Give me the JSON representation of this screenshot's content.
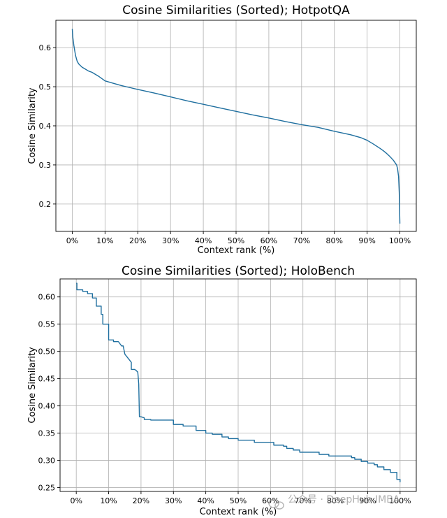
{
  "colors": {
    "series": "#1f6f9f",
    "watermark": "#9a9a9a"
  },
  "watermark": {
    "icon": "wechat-icon",
    "text": "公众号 · DeepHub IMBA"
  },
  "chart_data": [
    {
      "type": "line",
      "title": "Cosine Similarities (Sorted); HotpotQA",
      "xlabel": "Context rank (%)",
      "ylabel": "Cosine Similarity",
      "xlim": [
        -5,
        105
      ],
      "ylim": [
        0.13,
        0.67
      ],
      "grid": true,
      "xticks": [
        0,
        10,
        20,
        30,
        40,
        50,
        60,
        70,
        80,
        90,
        100
      ],
      "xtick_labels": [
        "0%",
        "10%",
        "20%",
        "30%",
        "40%",
        "50%",
        "60%",
        "70%",
        "80%",
        "90%",
        "100%"
      ],
      "yticks": [
        0.2,
        0.3,
        0.4,
        0.5,
        0.6
      ],
      "ytick_labels": [
        "0.2",
        "0.3",
        "0.4",
        "0.5",
        "0.6"
      ],
      "series": [
        {
          "x": [
            0,
            0.2,
            0.5,
            1,
            1.5,
            2,
            3,
            4,
            5,
            6,
            8,
            10,
            12,
            15,
            18,
            20,
            25,
            30,
            35,
            40,
            45,
            50,
            55,
            60,
            65,
            70,
            75,
            80,
            85,
            88,
            90,
            92,
            94,
            95,
            96,
            97,
            98,
            98.5,
            99,
            99.3,
            99.6,
            99.8,
            100
          ],
          "y": [
            0.648,
            0.625,
            0.605,
            0.58,
            0.565,
            0.558,
            0.55,
            0.545,
            0.54,
            0.537,
            0.527,
            0.515,
            0.51,
            0.503,
            0.497,
            0.493,
            0.484,
            0.474,
            0.464,
            0.455,
            0.446,
            0.437,
            0.428,
            0.42,
            0.411,
            0.403,
            0.396,
            0.386,
            0.377,
            0.37,
            0.363,
            0.353,
            0.342,
            0.336,
            0.329,
            0.321,
            0.312,
            0.306,
            0.3,
            0.29,
            0.27,
            0.23,
            0.15
          ]
        }
      ]
    },
    {
      "type": "line",
      "title": "Cosine Similarities (Sorted); HoloBench",
      "xlabel": "Context rank (%)",
      "ylabel": "Cosine Similarity",
      "xlim": [
        -5,
        105
      ],
      "ylim": [
        0.243,
        0.633
      ],
      "grid": true,
      "xticks": [
        0,
        10,
        20,
        30,
        40,
        50,
        60,
        70,
        80,
        90,
        100
      ],
      "xtick_labels": [
        "0%",
        "10%",
        "20%",
        "30%",
        "40%",
        "50%",
        "60%",
        "70%",
        "80%",
        "90%",
        "100%"
      ],
      "yticks": [
        0.25,
        0.3,
        0.35,
        0.4,
        0.45,
        0.5,
        0.55,
        0.6
      ],
      "ytick_labels": [
        "0.25",
        "0.30",
        "0.35",
        "0.40",
        "0.45",
        "0.50",
        "0.55",
        "0.60"
      ],
      "series": [
        {
          "x": [
            0,
            0.2,
            0.2,
            2,
            2,
            3.5,
            3.5,
            5,
            5,
            6.2,
            6.2,
            7.7,
            7.7,
            8.2,
            8.2,
            10,
            10,
            11.5,
            11.5,
            13,
            14,
            14.5,
            15,
            17,
            17,
            18,
            18.5,
            19,
            19.3,
            19.5,
            20,
            21,
            21,
            23,
            23,
            30,
            30,
            33,
            33,
            37,
            37,
            40,
            40,
            42,
            42,
            45,
            45,
            47,
            47,
            50,
            50,
            55,
            55,
            61,
            61,
            64,
            64,
            65,
            65,
            67,
            67,
            69,
            69,
            75,
            75,
            78,
            78,
            85,
            85,
            86,
            86,
            88,
            88,
            90,
            90,
            92,
            92,
            93,
            93,
            95,
            95,
            97,
            97,
            99,
            99,
            100,
            100
          ],
          "y": [
            0.625,
            0.625,
            0.613,
            0.613,
            0.61,
            0.61,
            0.606,
            0.606,
            0.598,
            0.598,
            0.583,
            0.583,
            0.568,
            0.568,
            0.55,
            0.55,
            0.521,
            0.521,
            0.518,
            0.518,
            0.51,
            0.51,
            0.495,
            0.48,
            0.467,
            0.467,
            0.465,
            0.462,
            0.44,
            0.38,
            0.38,
            0.378,
            0.375,
            0.375,
            0.374,
            0.374,
            0.366,
            0.366,
            0.363,
            0.363,
            0.355,
            0.355,
            0.35,
            0.35,
            0.348,
            0.348,
            0.343,
            0.343,
            0.34,
            0.34,
            0.337,
            0.337,
            0.333,
            0.333,
            0.328,
            0.328,
            0.326,
            0.326,
            0.322,
            0.322,
            0.319,
            0.319,
            0.315,
            0.315,
            0.311,
            0.311,
            0.308,
            0.308,
            0.305,
            0.305,
            0.302,
            0.302,
            0.298,
            0.298,
            0.295,
            0.295,
            0.292,
            0.292,
            0.288,
            0.288,
            0.283,
            0.283,
            0.278,
            0.278,
            0.265,
            0.265,
            0.26
          ]
        }
      ]
    }
  ]
}
